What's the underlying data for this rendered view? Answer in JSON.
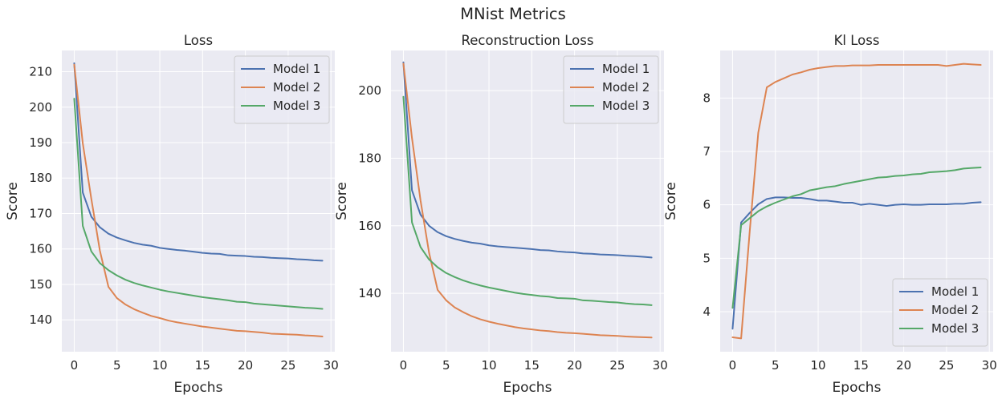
{
  "figure": {
    "title": "MNist Metrics"
  },
  "colors": {
    "model1": "#4c72b0",
    "model2": "#dd8452",
    "model3": "#55a868",
    "axes_bg": "#eaeaf2",
    "grid": "#ffffff"
  },
  "chart_data": [
    {
      "type": "line",
      "title": "Loss",
      "xlabel": "Epochs",
      "ylabel": "Score",
      "xlim": [
        -1.45,
        30.45
      ],
      "ylim": [
        131.0,
        216.0
      ],
      "xticks": [
        0,
        5,
        10,
        15,
        20,
        25,
        30
      ],
      "yticks": [
        140,
        150,
        160,
        170,
        180,
        190,
        200,
        210
      ],
      "grid": true,
      "legend_position": "top-right",
      "x": [
        0,
        1,
        2,
        3,
        4,
        5,
        6,
        7,
        8,
        9,
        10,
        11,
        12,
        13,
        14,
        15,
        16,
        17,
        18,
        19,
        20,
        21,
        22,
        23,
        24,
        25,
        26,
        27,
        28,
        29
      ],
      "series": [
        {
          "name": "Model 1",
          "color": "#4c72b0",
          "values": [
            212.4,
            175.9,
            169.1,
            166.1,
            164.3,
            163.2,
            162.4,
            161.7,
            161.2,
            160.9,
            160.3,
            160.0,
            159.7,
            159.5,
            159.2,
            158.9,
            158.7,
            158.6,
            158.2,
            158.1,
            158.0,
            157.8,
            157.7,
            157.5,
            157.4,
            157.3,
            157.1,
            157.0,
            156.8,
            156.7
          ]
        },
        {
          "name": "Model 2",
          "color": "#dd8452",
          "values": [
            212.0,
            189.8,
            174.1,
            159.5,
            149.3,
            146.1,
            144.3,
            143.0,
            142.0,
            141.1,
            140.5,
            139.8,
            139.3,
            138.9,
            138.5,
            138.1,
            137.8,
            137.5,
            137.2,
            136.9,
            136.8,
            136.6,
            136.4,
            136.1,
            136.0,
            135.9,
            135.8,
            135.6,
            135.5,
            135.3
          ]
        },
        {
          "name": "Model 3",
          "color": "#55a868",
          "values": [
            202.4,
            166.5,
            159.3,
            156.0,
            154.0,
            152.5,
            151.3,
            150.4,
            149.7,
            149.1,
            148.5,
            148.0,
            147.6,
            147.2,
            146.8,
            146.4,
            146.1,
            145.8,
            145.5,
            145.1,
            145.0,
            144.6,
            144.4,
            144.2,
            144.0,
            143.8,
            143.6,
            143.4,
            143.3,
            143.1
          ]
        }
      ]
    },
    {
      "type": "line",
      "title": "Reconstruction Loss",
      "xlabel": "Epochs",
      "ylabel": "Score",
      "xlim": [
        -1.45,
        30.45
      ],
      "ylim": [
        122.7,
        211.9
      ],
      "xticks": [
        0,
        5,
        10,
        15,
        20,
        25,
        30
      ],
      "yticks": [
        140,
        160,
        180,
        200
      ],
      "grid": true,
      "legend_position": "top-right",
      "x": [
        0,
        1,
        2,
        3,
        4,
        5,
        6,
        7,
        8,
        9,
        10,
        11,
        12,
        13,
        14,
        15,
        16,
        17,
        18,
        19,
        20,
        21,
        22,
        23,
        24,
        25,
        26,
        27,
        28,
        29
      ],
      "series": [
        {
          "name": "Model 1",
          "color": "#4c72b0",
          "values": [
            208.4,
            170.5,
            163.3,
            160.0,
            158.1,
            156.9,
            156.1,
            155.5,
            155.0,
            154.7,
            154.2,
            153.9,
            153.7,
            153.5,
            153.3,
            153.1,
            152.8,
            152.7,
            152.4,
            152.2,
            152.1,
            151.8,
            151.7,
            151.5,
            151.4,
            151.3,
            151.1,
            151.0,
            150.8,
            150.6
          ]
        },
        {
          "name": "Model 2",
          "color": "#dd8452",
          "values": [
            208.0,
            186.0,
            167.5,
            152.0,
            141.0,
            137.9,
            135.8,
            134.4,
            133.2,
            132.3,
            131.6,
            131.0,
            130.5,
            130.0,
            129.6,
            129.3,
            129.0,
            128.8,
            128.5,
            128.3,
            128.2,
            128.0,
            127.8,
            127.6,
            127.5,
            127.4,
            127.2,
            127.1,
            127.0,
            126.9
          ]
        },
        {
          "name": "Model 3",
          "color": "#55a868",
          "values": [
            198.2,
            161.0,
            153.7,
            150.0,
            147.7,
            146.0,
            144.8,
            143.8,
            143.0,
            142.3,
            141.7,
            141.2,
            140.7,
            140.2,
            139.8,
            139.5,
            139.2,
            139.0,
            138.6,
            138.5,
            138.4,
            137.9,
            137.8,
            137.6,
            137.4,
            137.3,
            137.0,
            136.8,
            136.7,
            136.5
          ]
        }
      ]
    },
    {
      "type": "line",
      "title": "Kl Loss",
      "xlabel": "Epochs",
      "ylabel": "Score",
      "xlim": [
        -1.45,
        30.45
      ],
      "ylim": [
        3.25,
        8.89
      ],
      "xticks": [
        0,
        5,
        10,
        15,
        20,
        25,
        30
      ],
      "yticks": [
        4,
        5,
        6,
        7,
        8
      ],
      "grid": true,
      "legend_position": "bottom-right",
      "x": [
        0,
        1,
        2,
        3,
        4,
        5,
        6,
        7,
        8,
        9,
        10,
        11,
        12,
        13,
        14,
        15,
        16,
        17,
        18,
        19,
        20,
        21,
        22,
        23,
        24,
        25,
        26,
        27,
        28,
        29
      ],
      "series": [
        {
          "name": "Model 1",
          "color": "#4c72b0",
          "values": [
            3.68,
            5.67,
            5.85,
            6.01,
            6.11,
            6.14,
            6.14,
            6.13,
            6.13,
            6.11,
            6.08,
            6.08,
            6.06,
            6.04,
            6.04,
            6.0,
            6.02,
            6.0,
            5.98,
            6.0,
            6.01,
            6.0,
            6.0,
            6.01,
            6.01,
            6.01,
            6.02,
            6.02,
            6.04,
            6.05
          ]
        },
        {
          "name": "Model 2",
          "color": "#dd8452",
          "values": [
            3.52,
            3.5,
            5.5,
            7.35,
            8.2,
            8.3,
            8.37,
            8.44,
            8.48,
            8.53,
            8.56,
            8.58,
            8.6,
            8.6,
            8.61,
            8.61,
            8.61,
            8.62,
            8.62,
            8.62,
            8.62,
            8.62,
            8.62,
            8.62,
            8.62,
            8.6,
            8.62,
            8.64,
            8.63,
            8.62
          ]
        },
        {
          "name": "Model 3",
          "color": "#55a868",
          "values": [
            4.07,
            5.62,
            5.75,
            5.88,
            5.97,
            6.04,
            6.1,
            6.16,
            6.2,
            6.27,
            6.3,
            6.33,
            6.35,
            6.39,
            6.42,
            6.45,
            6.48,
            6.51,
            6.52,
            6.54,
            6.55,
            6.57,
            6.58,
            6.61,
            6.62,
            6.63,
            6.65,
            6.68,
            6.69,
            6.7
          ]
        }
      ]
    }
  ]
}
